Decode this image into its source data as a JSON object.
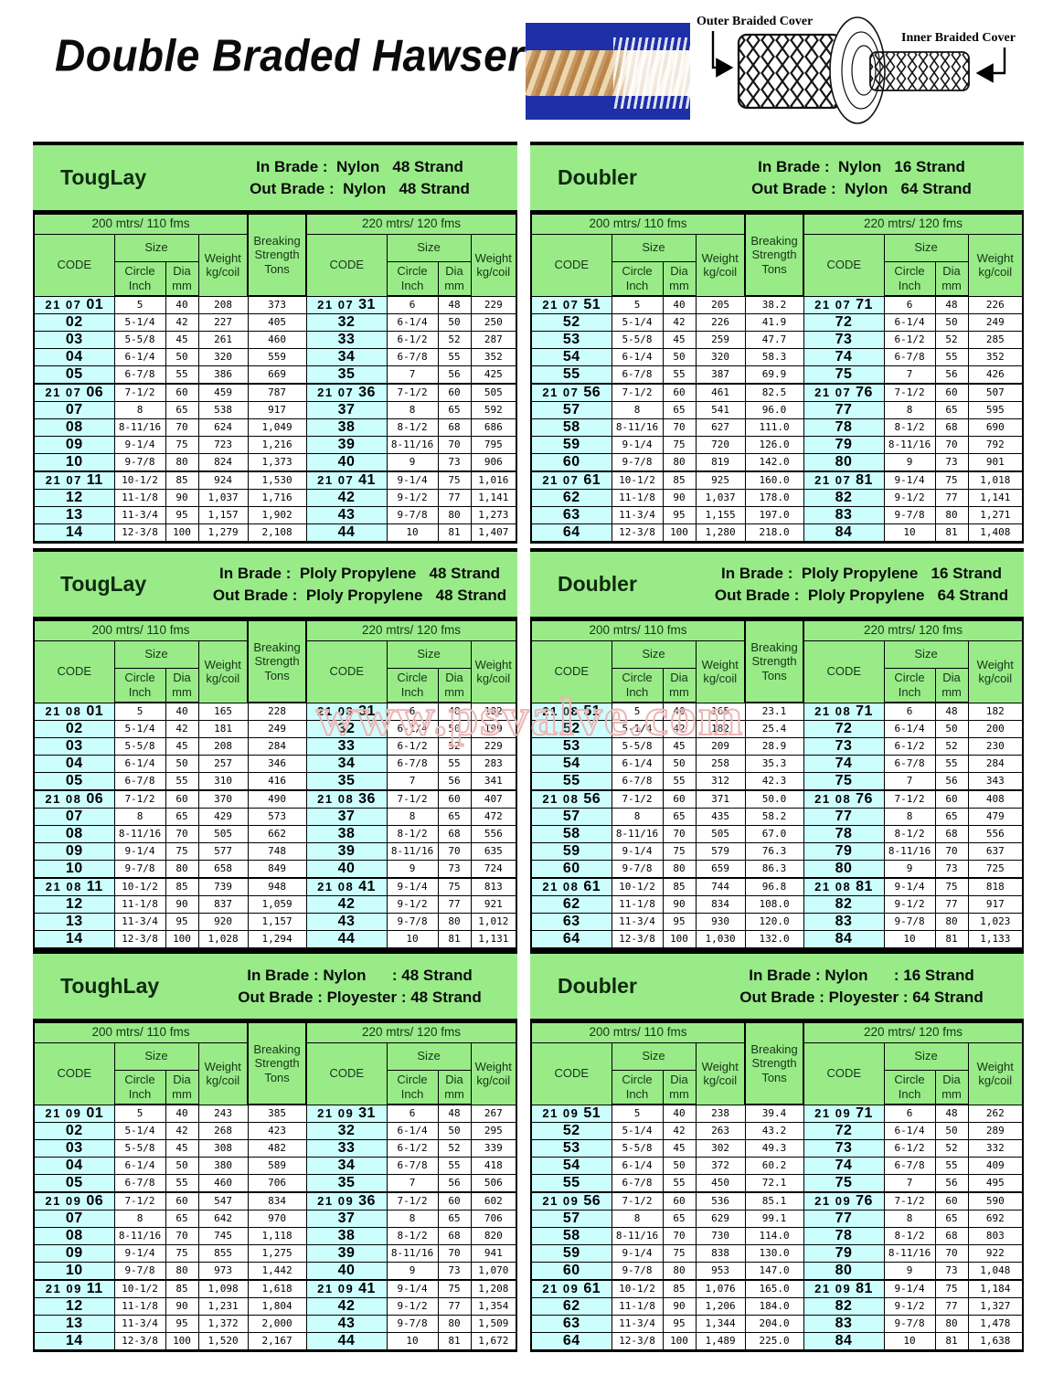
{
  "page": {
    "title": "Double Braded Hawser",
    "watermark": "www.psvalve.com"
  },
  "diagram": {
    "outer_label": "Outer Braided Cover",
    "inner_label": "Inner Braided Cover"
  },
  "colors": {
    "header_green": "#99EB88",
    "code_cyan": "#CCFEFE",
    "watermark_pink": "#EAB6B6",
    "photo_blue": "#1E2FA8"
  },
  "columns": {
    "section_200": "200 mtrs/ 110 fms",
    "section_220": "220 mtrs/ 120 fms",
    "code": "CODE",
    "size": "Size",
    "circle_inch": "Circle\nInch",
    "dia_mm": "Dia\nmm",
    "weight": "Weight\nkg/coil",
    "breaking_strength": "Breaking\nStrength\nTons"
  },
  "tables": [
    {
      "brand": "TougLay",
      "in_brade": "In Brade :  Nylon   48 Strand",
      "out_brade": "Out Brade :  Nylon   48 Strand",
      "rows": [
        [
          "21 07 01",
          "5",
          "40",
          "208",
          "373",
          "21 07 31",
          "6",
          "48",
          "229"
        ],
        [
          "02",
          "5-1/4",
          "42",
          "227",
          "405",
          "32",
          "6-1/4",
          "50",
          "250"
        ],
        [
          "03",
          "5-5/8",
          "45",
          "261",
          "460",
          "33",
          "6-1/2",
          "52",
          "287"
        ],
        [
          "04",
          "6-1/4",
          "50",
          "320",
          "559",
          "34",
          "6-7/8",
          "55",
          "352"
        ],
        [
          "05",
          "6-7/8",
          "55",
          "386",
          "669",
          "35",
          "7",
          "56",
          "425"
        ],
        [
          "21 07 06",
          "7-1/2",
          "60",
          "459",
          "787",
          "21 07 36",
          "7-1/2",
          "60",
          "505"
        ],
        [
          "07",
          "8",
          "65",
          "538",
          "917",
          "37",
          "8",
          "65",
          "592"
        ],
        [
          "08",
          "8-11/16",
          "70",
          "624",
          "1,049",
          "38",
          "8-1/2",
          "68",
          "686"
        ],
        [
          "09",
          "9-1/4",
          "75",
          "723",
          "1,216",
          "39",
          "8-11/16",
          "70",
          "795"
        ],
        [
          "10",
          "9-7/8",
          "80",
          "824",
          "1,373",
          "40",
          "9",
          "73",
          "906"
        ],
        [
          "21 07 11",
          "10-1/2",
          "85",
          "924",
          "1,530",
          "21 07 41",
          "9-1/4",
          "75",
          "1,016"
        ],
        [
          "12",
          "11-1/8",
          "90",
          "1,037",
          "1,716",
          "42",
          "9-1/2",
          "77",
          "1,141"
        ],
        [
          "13",
          "11-3/4",
          "95",
          "1,157",
          "1,902",
          "43",
          "9-7/8",
          "80",
          "1,273"
        ],
        [
          "14",
          "12-3/8",
          "100",
          "1,279",
          "2,108",
          "44",
          "10",
          "81",
          "1,407"
        ]
      ]
    },
    {
      "brand": "Doubler",
      "in_brade": "In Brade :  Nylon   16 Strand",
      "out_brade": "Out Brade :  Nylon   64 Strand",
      "rows": [
        [
          "21 07 51",
          "5",
          "40",
          "205",
          "38.2",
          "21 07 71",
          "6",
          "48",
          "226"
        ],
        [
          "52",
          "5-1/4",
          "42",
          "226",
          "41.9",
          "72",
          "6-1/4",
          "50",
          "249"
        ],
        [
          "53",
          "5-5/8",
          "45",
          "259",
          "47.7",
          "73",
          "6-1/2",
          "52",
          "285"
        ],
        [
          "54",
          "6-1/4",
          "50",
          "320",
          "58.3",
          "74",
          "6-7/8",
          "55",
          "352"
        ],
        [
          "55",
          "6-7/8",
          "55",
          "387",
          "69.9",
          "75",
          "7",
          "56",
          "426"
        ],
        [
          "21 07 56",
          "7-1/2",
          "60",
          "461",
          "82.5",
          "21 07 76",
          "7-1/2",
          "60",
          "507"
        ],
        [
          "57",
          "8",
          "65",
          "541",
          "96.0",
          "77",
          "8",
          "65",
          "595"
        ],
        [
          "58",
          "8-11/16",
          "70",
          "627",
          "111.0",
          "78",
          "8-1/2",
          "68",
          "690"
        ],
        [
          "59",
          "9-1/4",
          "75",
          "720",
          "126.0",
          "79",
          "8-11/16",
          "70",
          "792"
        ],
        [
          "60",
          "9-7/8",
          "80",
          "819",
          "142.0",
          "80",
          "9",
          "73",
          "901"
        ],
        [
          "21 07 61",
          "10-1/2",
          "85",
          "925",
          "160.0",
          "21 07 81",
          "9-1/4",
          "75",
          "1,018"
        ],
        [
          "62",
          "11-1/8",
          "90",
          "1,037",
          "178.0",
          "82",
          "9-1/2",
          "77",
          "1,141"
        ],
        [
          "63",
          "11-3/4",
          "95",
          "1,155",
          "197.0",
          "83",
          "9-7/8",
          "80",
          "1,271"
        ],
        [
          "64",
          "12-3/8",
          "100",
          "1,280",
          "218.0",
          "84",
          "10",
          "81",
          "1,408"
        ]
      ]
    },
    {
      "brand": "TougLay",
      "in_brade": "In Brade :  Ploly Propylene   48 Strand",
      "out_brade": "Out Brade :  Ploly Propylene   48 Strand",
      "rows": [
        [
          "21 08 01",
          "5",
          "40",
          "165",
          "228",
          "21 08 31",
          "6",
          "48",
          "182"
        ],
        [
          "02",
          "5-1/4",
          "42",
          "181",
          "249",
          "32",
          "6-1/4",
          "50",
          "199"
        ],
        [
          "03",
          "5-5/8",
          "45",
          "208",
          "284",
          "33",
          "6-1/2",
          "52",
          "229"
        ],
        [
          "04",
          "6-1/4",
          "50",
          "257",
          "346",
          "34",
          "6-7/8",
          "55",
          "283"
        ],
        [
          "05",
          "6-7/8",
          "55",
          "310",
          "416",
          "35",
          "7",
          "56",
          "341"
        ],
        [
          "21 08 06",
          "7-1/2",
          "60",
          "370",
          "490",
          "21 08 36",
          "7-1/2",
          "60",
          "407"
        ],
        [
          "07",
          "8",
          "65",
          "429",
          "573",
          "37",
          "8",
          "65",
          "472"
        ],
        [
          "08",
          "8-11/16",
          "70",
          "505",
          "662",
          "38",
          "8-1/2",
          "68",
          "556"
        ],
        [
          "09",
          "9-1/4",
          "75",
          "577",
          "748",
          "39",
          "8-11/16",
          "70",
          "635"
        ],
        [
          "10",
          "9-7/8",
          "80",
          "658",
          "849",
          "40",
          "9",
          "73",
          "724"
        ],
        [
          "21 08 11",
          "10-1/2",
          "85",
          "739",
          "948",
          "21 08 41",
          "9-1/4",
          "75",
          "813"
        ],
        [
          "12",
          "11-1/8",
          "90",
          "837",
          "1,059",
          "42",
          "9-1/2",
          "77",
          "921"
        ],
        [
          "13",
          "11-3/4",
          "95",
          "920",
          "1,157",
          "43",
          "9-7/8",
          "80",
          "1,012"
        ],
        [
          "14",
          "12-3/8",
          "100",
          "1,028",
          "1,294",
          "44",
          "10",
          "81",
          "1,131"
        ]
      ]
    },
    {
      "brand": "Doubler",
      "in_brade": "In Brade :  Ploly Propylene   16 Strand",
      "out_brade": "Out Brade :  Ploly Propylene   64 Strand",
      "rows": [
        [
          "21 08 51",
          "5",
          "40",
          "165",
          "23.1",
          "21 08 71",
          "6",
          "48",
          "182"
        ],
        [
          "52",
          "5-1/4",
          "42",
          "182",
          "25.4",
          "72",
          "6-1/4",
          "50",
          "200"
        ],
        [
          "53",
          "5-5/8",
          "45",
          "209",
          "28.9",
          "73",
          "6-1/2",
          "52",
          "230"
        ],
        [
          "54",
          "6-1/4",
          "50",
          "258",
          "35.3",
          "74",
          "6-7/8",
          "55",
          "284"
        ],
        [
          "55",
          "6-7/8",
          "55",
          "312",
          "42.3",
          "75",
          "7",
          "56",
          "343"
        ],
        [
          "21 08 56",
          "7-1/2",
          "60",
          "371",
          "50.0",
          "21 08 76",
          "7-1/2",
          "60",
          "408"
        ],
        [
          "57",
          "8",
          "65",
          "435",
          "58.2",
          "77",
          "8",
          "65",
          "479"
        ],
        [
          "58",
          "8-11/16",
          "70",
          "505",
          "67.0",
          "78",
          "8-1/2",
          "68",
          "556"
        ],
        [
          "59",
          "9-1/4",
          "75",
          "579",
          "76.3",
          "79",
          "8-11/16",
          "70",
          "637"
        ],
        [
          "60",
          "9-7/8",
          "80",
          "659",
          "86.3",
          "80",
          "9",
          "73",
          "725"
        ],
        [
          "21 08 61",
          "10-1/2",
          "85",
          "744",
          "96.8",
          "21 08 81",
          "9-1/4",
          "75",
          "818"
        ],
        [
          "62",
          "11-1/8",
          "90",
          "834",
          "108.0",
          "82",
          "9-1/2",
          "77",
          "917"
        ],
        [
          "63",
          "11-3/4",
          "95",
          "930",
          "120.0",
          "83",
          "9-7/8",
          "80",
          "1,023"
        ],
        [
          "64",
          "12-3/8",
          "100",
          "1,030",
          "132.0",
          "84",
          "10",
          "81",
          "1,133"
        ]
      ]
    },
    {
      "brand": "ToughLay",
      "in_brade": "In Brade : Nylon      : 48 Strand",
      "out_brade": "Out Brade : Ployester : 48 Strand",
      "rows": [
        [
          "21 09 01",
          "5",
          "40",
          "243",
          "385",
          "21 09 31",
          "6",
          "48",
          "267"
        ],
        [
          "02",
          "5-1/4",
          "42",
          "268",
          "423",
          "32",
          "6-1/4",
          "50",
          "295"
        ],
        [
          "03",
          "5-5/8",
          "45",
          "308",
          "482",
          "33",
          "6-1/2",
          "52",
          "339"
        ],
        [
          "04",
          "6-1/4",
          "50",
          "380",
          "589",
          "34",
          "6-7/8",
          "55",
          "418"
        ],
        [
          "05",
          "6-7/8",
          "55",
          "460",
          "706",
          "35",
          "7",
          "56",
          "506"
        ],
        [
          "21 09 06",
          "7-1/2",
          "60",
          "547",
          "834",
          "21 09 36",
          "7-1/2",
          "60",
          "602"
        ],
        [
          "07",
          "8",
          "65",
          "642",
          "970",
          "37",
          "8",
          "65",
          "706"
        ],
        [
          "08",
          "8-11/16",
          "70",
          "745",
          "1,118",
          "38",
          "8-1/2",
          "68",
          "820"
        ],
        [
          "09",
          "9-1/4",
          "75",
          "855",
          "1,275",
          "39",
          "8-11/16",
          "70",
          "941"
        ],
        [
          "10",
          "9-7/8",
          "80",
          "973",
          "1,442",
          "40",
          "9",
          "73",
          "1,070"
        ],
        [
          "21 09 11",
          "10-1/2",
          "85",
          "1,098",
          "1,618",
          "21 09 41",
          "9-1/4",
          "75",
          "1,208"
        ],
        [
          "12",
          "11-1/8",
          "90",
          "1,231",
          "1,804",
          "42",
          "9-1/2",
          "77",
          "1,354"
        ],
        [
          "13",
          "11-3/4",
          "95",
          "1,372",
          "2,000",
          "43",
          "9-7/8",
          "80",
          "1,509"
        ],
        [
          "14",
          "12-3/8",
          "100",
          "1,520",
          "2,167",
          "44",
          "10",
          "81",
          "1,672"
        ]
      ]
    },
    {
      "brand": "Doubler",
      "in_brade": "In Brade : Nylon      : 16 Strand",
      "out_brade": "Out Brade : Ployester : 64 Strand",
      "rows": [
        [
          "21 09 51",
          "5",
          "40",
          "238",
          "39.4",
          "21 09 71",
          "6",
          "48",
          "262"
        ],
        [
          "52",
          "5-1/4",
          "42",
          "263",
          "43.2",
          "72",
          "6-1/4",
          "50",
          "289"
        ],
        [
          "53",
          "5-5/8",
          "45",
          "302",
          "49.3",
          "73",
          "6-1/2",
          "52",
          "332"
        ],
        [
          "54",
          "6-1/4",
          "50",
          "372",
          "60.2",
          "74",
          "6-7/8",
          "55",
          "409"
        ],
        [
          "55",
          "6-7/8",
          "55",
          "450",
          "72.1",
          "75",
          "7",
          "56",
          "495"
        ],
        [
          "21 09 56",
          "7-1/2",
          "60",
          "536",
          "85.1",
          "21 09 76",
          "7-1/2",
          "60",
          "590"
        ],
        [
          "57",
          "8",
          "65",
          "629",
          "99.1",
          "77",
          "8",
          "65",
          "692"
        ],
        [
          "58",
          "8-11/16",
          "70",
          "730",
          "114.0",
          "78",
          "8-1/2",
          "68",
          "803"
        ],
        [
          "59",
          "9-1/4",
          "75",
          "838",
          "130.0",
          "79",
          "8-11/16",
          "70",
          "922"
        ],
        [
          "60",
          "9-7/8",
          "80",
          "953",
          "147.0",
          "80",
          "9",
          "73",
          "1,048"
        ],
        [
          "21 09 61",
          "10-1/2",
          "85",
          "1,076",
          "165.0",
          "21 09 81",
          "9-1/4",
          "75",
          "1,184"
        ],
        [
          "62",
          "11-1/8",
          "90",
          "1,206",
          "184.0",
          "82",
          "9-1/2",
          "77",
          "1,327"
        ],
        [
          "63",
          "11-3/4",
          "95",
          "1,344",
          "204.0",
          "83",
          "9-7/8",
          "80",
          "1,478"
        ],
        [
          "64",
          "12-3/8",
          "100",
          "1,489",
          "225.0",
          "84",
          "10",
          "81",
          "1,638"
        ]
      ]
    }
  ]
}
